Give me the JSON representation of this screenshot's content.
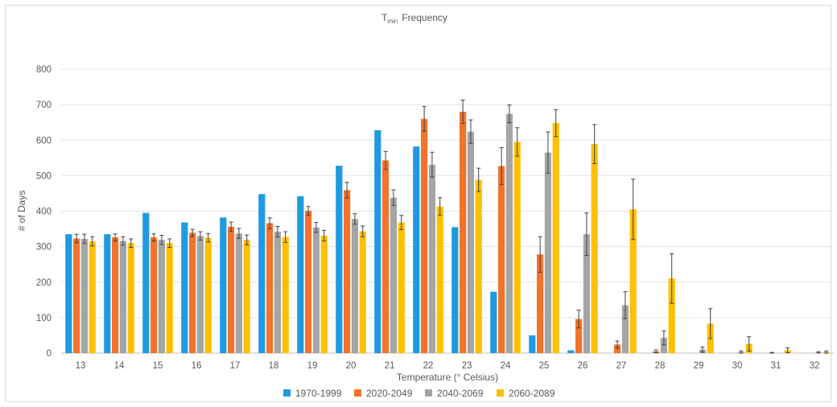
{
  "chart_data": {
    "type": "bar",
    "title": "Tmin Frequency",
    "title_parts": {
      "main": "T",
      "sub": "min",
      "rest": "Frequency"
    },
    "xlabel": "Temperature (° Celsius)",
    "ylabel": "# of Days",
    "ylim": [
      0,
      800
    ],
    "yticks": [
      0,
      100,
      200,
      300,
      400,
      500,
      600,
      700,
      800
    ],
    "grid": true,
    "legend_position": "bottom",
    "error_bars": true,
    "categories": [
      "13",
      "14",
      "15",
      "16",
      "17",
      "18",
      "19",
      "20",
      "21",
      "22",
      "23",
      "24",
      "25",
      "26",
      "27",
      "28",
      "29",
      "30",
      "31",
      "32"
    ],
    "series": [
      {
        "name": "1970-1999",
        "color": "#1f9ae0",
        "values": [
          335,
          335,
          395,
          368,
          382,
          448,
          442,
          528,
          628,
          582,
          355,
          173,
          50,
          8,
          0,
          0,
          0,
          0,
          0,
          0
        ],
        "errors": [
          0,
          0,
          0,
          0,
          0,
          0,
          0,
          0,
          0,
          0,
          0,
          0,
          0,
          0,
          0,
          0,
          0,
          0,
          0,
          0
        ]
      },
      {
        "name": "2020-2049",
        "color": "#f2732a",
        "values": [
          323,
          326,
          326,
          339,
          356,
          366,
          401,
          459,
          543,
          660,
          680,
          527,
          278,
          96,
          24,
          5,
          0,
          0,
          1,
          0
        ],
        "errors": [
          12,
          10,
          10,
          10,
          13,
          15,
          12,
          22,
          25,
          35,
          33,
          52,
          50,
          25,
          10,
          4,
          0,
          0,
          1,
          0
        ]
      },
      {
        "name": "2040-2069",
        "color": "#a5a5a5",
        "values": [
          322,
          316,
          319,
          330,
          337,
          342,
          354,
          378,
          438,
          531,
          624,
          674,
          565,
          335,
          135,
          43,
          10,
          3,
          0,
          2
        ],
        "errors": [
          13,
          12,
          13,
          12,
          14,
          15,
          14,
          15,
          22,
          35,
          33,
          25,
          58,
          60,
          38,
          20,
          7,
          3,
          0,
          2
        ]
      },
      {
        "name": "2060-2089",
        "color": "#ffc000",
        "values": [
          315,
          310,
          310,
          325,
          319,
          327,
          331,
          343,
          368,
          413,
          488,
          595,
          648,
          589,
          405,
          210,
          83,
          26,
          8,
          3
        ],
        "errors": [
          13,
          12,
          12,
          12,
          14,
          15,
          15,
          15,
          20,
          25,
          33,
          40,
          38,
          55,
          85,
          70,
          42,
          20,
          7,
          3
        ]
      }
    ]
  }
}
